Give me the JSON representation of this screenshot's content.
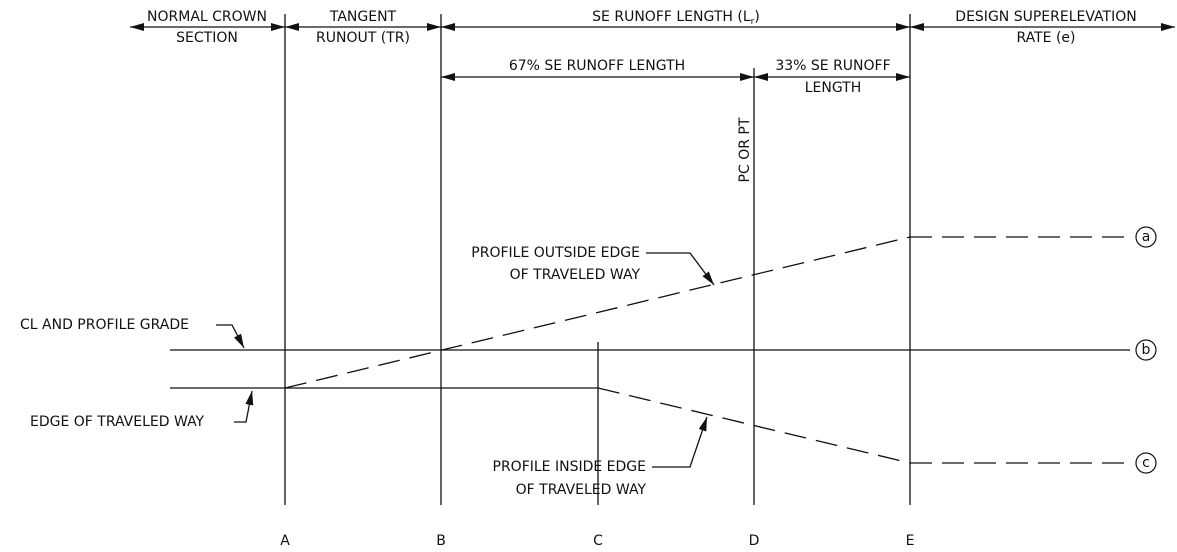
{
  "dimensions": {
    "normal_crown": [
      "NORMAL CROWN",
      "SECTION"
    ],
    "tangent_runout": [
      "TANGENT",
      "RUNOUT (TR)"
    ],
    "se_runoff": {
      "text": "SE RUNOFF LENGTH (L",
      "subscript": "r",
      "close": ")"
    },
    "design_rate": [
      "DESIGN SUPERELEVATION",
      "RATE (e)"
    ],
    "runoff_67": "67% SE RUNOFF LENGTH",
    "runoff_33": [
      "33% SE RUNOFF",
      "LENGTH"
    ]
  },
  "pc_or_pt": "PC OR PT",
  "annotations": {
    "outside_edge": [
      "PROFILE OUTSIDE EDGE",
      "OF TRAVELED WAY"
    ],
    "cl_grade": "CL AND PROFILE GRADE",
    "edge": "EDGE OF TRAVELED WAY",
    "inside_edge": [
      "PROFILE INSIDE EDGE",
      "OF TRAVELED WAY"
    ]
  },
  "curve_labels": [
    "a",
    "b",
    "c"
  ],
  "points": [
    "A",
    "B",
    "C",
    "D",
    "E"
  ]
}
